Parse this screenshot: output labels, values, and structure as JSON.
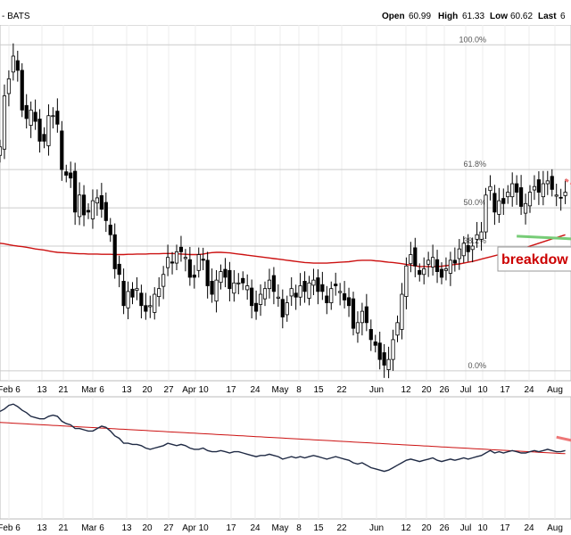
{
  "header": {
    "symbol": "- BATS",
    "open_label": "Open",
    "open_value": "60.99",
    "high_label": "High",
    "high_value": "61.33",
    "low_label": "Low",
    "low_value": "60.62",
    "last_label": "Last",
    "last_value": "6"
  },
  "colors": {
    "up_candle": "#ffffff",
    "down_candle": "#000000",
    "ma_line": "#cc1111",
    "support_line": "#77cc77",
    "resistance_line": "#ee7777",
    "indicator_line": "#1f2a44",
    "grid": "#cccccc"
  },
  "chart_data": [
    {
      "type": "candlestick",
      "fib_levels": [
        {
          "label": "100.0%",
          "y": 66.2
        },
        {
          "label": "61.8%",
          "y": 61.8
        },
        {
          "label": "50.0%",
          "y": 60.45
        },
        {
          "label": "38.2%",
          "y": 59.1
        },
        {
          "label": "0.0%",
          "y": 54.7
        }
      ],
      "annotation": "breakdow",
      "ylim": [
        54.35,
        66.9
      ],
      "x_ticks": [
        "Feb 6",
        "13",
        "21",
        "Mar 6",
        "13",
        "20",
        "27",
        "Apr 10",
        "17",
        "24",
        "May",
        "8",
        "15",
        "22",
        "Jun",
        "12",
        "20",
        "26",
        "Jul",
        "10",
        "17",
        "24",
        "Aug"
      ],
      "closes": [
        62.6,
        64.4,
        65.0,
        65.8,
        65.3,
        63.9,
        63.6,
        63.9,
        63.5,
        62.8,
        62.8,
        63.7,
        63.7,
        63.4,
        61.8,
        61.6,
        61.5,
        60.3,
        60.9,
        60.2,
        60.3,
        60.7,
        60.8,
        60.4,
        60.0,
        59.5,
        58.3,
        58.1,
        57.0,
        57.5,
        57.3,
        57.6,
        57.0,
        56.8,
        57.0,
        57.4,
        57.6,
        58.1,
        58.7,
        58.5,
        58.9,
        58.9,
        58.7,
        58.0,
        58.0,
        58.8,
        58.6,
        57.7,
        57.4,
        57.9,
        58.2,
        58.0,
        57.6,
        57.8,
        57.8,
        57.8,
        57.7,
        57.0,
        56.8,
        57.4,
        57.6,
        57.9,
        57.5,
        57.3,
        56.6,
        57.1,
        57.6,
        57.3,
        57.7,
        57.5,
        57.8,
        57.9,
        57.5,
        57.5,
        57.1,
        57.6,
        57.7,
        57.5,
        57.2,
        57.0,
        56.2,
        56.4,
        56.8,
        56.4,
        55.8,
        55.6,
        55.1,
        54.9,
        55.1,
        55.8,
        56.4,
        57.4,
        58.4,
        58.8,
        58.4,
        58.1,
        58.3,
        58.6,
        58.7,
        58.2,
        58.0,
        58.3,
        58.6,
        58.5,
        59.0,
        59.2,
        58.9,
        59.1,
        59.5,
        59.6,
        60.9,
        61.2,
        60.3,
        60.7,
        60.6,
        61.0,
        61.3,
        61.0,
        60.5,
        60.6,
        61.0,
        61.2,
        61.0,
        61.3,
        61.4,
        61.1,
        60.9,
        60.8,
        61.0
      ],
      "ma200": [
        59.2,
        59.18,
        59.15,
        59.12,
        59.1,
        59.08,
        59.06,
        59.03,
        59.0,
        58.98,
        58.96,
        58.93,
        58.9,
        58.88,
        58.87,
        58.86,
        58.85,
        58.84,
        58.83,
        58.83,
        58.82,
        58.82,
        58.82,
        58.81,
        58.81,
        58.81,
        58.8,
        58.8,
        58.8,
        58.81,
        58.81,
        58.82,
        58.82,
        58.82,
        58.83,
        58.83,
        58.83,
        58.84,
        58.84,
        58.84,
        58.83,
        58.82,
        58.81,
        58.8,
        58.8,
        58.8,
        58.82,
        58.85,
        58.87,
        58.88,
        58.88,
        58.87,
        58.86,
        58.84,
        58.82,
        58.8,
        58.78,
        58.76,
        58.74,
        58.72,
        58.7,
        58.68,
        58.66,
        58.64,
        58.62,
        58.6,
        58.58,
        58.56,
        58.54,
        58.52,
        58.51,
        58.5,
        58.5,
        58.5,
        58.5,
        58.51,
        58.52,
        58.53,
        58.54,
        58.55,
        58.57,
        58.59,
        58.6,
        58.6,
        58.6,
        58.58,
        58.57,
        58.55,
        58.53,
        58.52,
        58.5,
        58.48,
        58.45,
        58.43,
        58.4,
        58.38,
        58.38,
        58.38,
        58.38,
        58.38,
        58.39,
        58.41,
        58.43,
        58.45,
        58.47,
        58.5,
        58.53,
        58.56,
        58.6,
        58.64,
        58.68,
        58.72,
        58.76,
        58.8,
        58.84,
        58.88,
        58.92,
        58.96,
        59.0,
        59.04,
        59.1,
        59.15,
        59.2,
        59.25,
        59.3,
        59.35,
        59.4,
        59.45,
        59.5
      ],
      "support_segment": {
        "from_index": 117,
        "to_index": 130,
        "from_y": 59.45,
        "to_y": 59.35
      },
      "resistance_segment": {
        "from_index": 128,
        "to_index": 131,
        "from_y": 61.45,
        "to_y": 61.15
      }
    },
    {
      "type": "line",
      "ylim": [
        0,
        100
      ],
      "x_ticks": [
        "Feb 6",
        "13",
        "21",
        "Mar 6",
        "13",
        "20",
        "27",
        "Apr 10",
        "17",
        "24",
        "May",
        "8",
        "15",
        "22",
        "Jun",
        "12",
        "20",
        "26",
        "Jul",
        "10",
        "17",
        "24",
        "Aug"
      ],
      "values": [
        88,
        90,
        93,
        94,
        92,
        89,
        87,
        84,
        83,
        82,
        82,
        84,
        85,
        84,
        80,
        78,
        77,
        74,
        74,
        73,
        72,
        72,
        74,
        76,
        75,
        72,
        68,
        66,
        62,
        62,
        61,
        61,
        60,
        58,
        57,
        58,
        59,
        60,
        62,
        61,
        60,
        61,
        60,
        58,
        57,
        57,
        58,
        56,
        55,
        55,
        56,
        55,
        54,
        55,
        55,
        54,
        53,
        52,
        51,
        52,
        52,
        53,
        52,
        51,
        49,
        50,
        51,
        50,
        51,
        50,
        51,
        52,
        51,
        50,
        49,
        50,
        51,
        50,
        49,
        48,
        46,
        45,
        46,
        44,
        42,
        41,
        40,
        39,
        40,
        42,
        44,
        46,
        48,
        49,
        48,
        47,
        48,
        49,
        50,
        48,
        47,
        48,
        49,
        48,
        49,
        50,
        49,
        50,
        51,
        52,
        54,
        56,
        54,
        55,
        54,
        55,
        56,
        55,
        54,
        54,
        55,
        56,
        55,
        56,
        57,
        56,
        55,
        55,
        56
      ],
      "ma": [
        79,
        78.8,
        78.6,
        78.4,
        78.2,
        78,
        77.8,
        77.6,
        77.4,
        77.2,
        77,
        76.8,
        76.6,
        76.4,
        76.2,
        76,
        75.8,
        75.6,
        75.4,
        75.2,
        75,
        74.8,
        74.6,
        74.4,
        74.2,
        74,
        73.8,
        73.6,
        73.4,
        73.2,
        73,
        72.8,
        72.6,
        72.4,
        72.2,
        72,
        71.8,
        71.6,
        71.4,
        71.2,
        71,
        70.8,
        70.6,
        70.4,
        70.2,
        70,
        69.8,
        69.6,
        69.4,
        69.2,
        69,
        68.8,
        68.6,
        68.4,
        68.2,
        68,
        67.8,
        67.6,
        67.4,
        67.2,
        67,
        66.8,
        66.6,
        66.4,
        66.2,
        66,
        65.8,
        65.6,
        65.4,
        65.2,
        65,
        64.8,
        64.6,
        64.4,
        64.2,
        64,
        63.8,
        63.6,
        63.4,
        63.2,
        63,
        62.8,
        62.6,
        62.4,
        62.2,
        62,
        61.8,
        61.6,
        61.4,
        61.2,
        61,
        60.8,
        60.6,
        60.4,
        60.2,
        60,
        59.8,
        59.6,
        59.4,
        59.2,
        59,
        58.8,
        58.6,
        58.4,
        58.2,
        58,
        57.8,
        57.6,
        57.4,
        57.2,
        57,
        56.8,
        56.6,
        56.4,
        56.2,
        56,
        55.8,
        55.6,
        55.4,
        55.2,
        55,
        54.8,
        54.6,
        54.4,
        54.2,
        54,
        53.8,
        53.6,
        53.4
      ],
      "trend_segment": {
        "from_index": 126,
        "to_index": 131,
        "from_y": 67,
        "to_y": 63
      }
    }
  ]
}
